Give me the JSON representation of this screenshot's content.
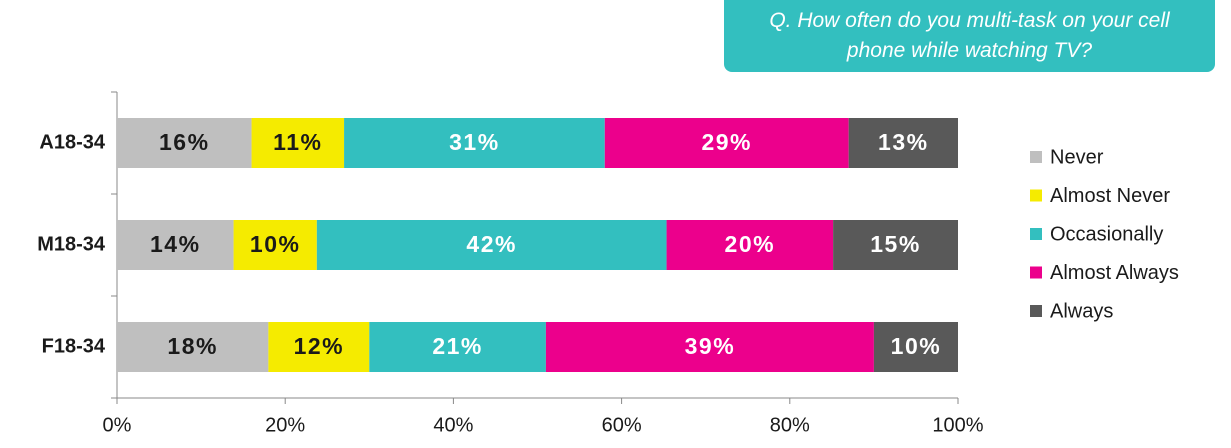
{
  "chart_data": {
    "type": "bar",
    "orientation": "horizontal",
    "stacked": "percent",
    "title": "Q. How often do you multi-task on your cell phone while watching TV?",
    "categories": [
      "A18-34",
      "M18-34",
      "F18-34"
    ],
    "series": [
      {
        "name": "Never",
        "color": "#bfbfbf",
        "label_color": "#1a1a1a",
        "values": [
          16,
          14,
          18
        ],
        "value_labels": [
          "16%",
          "14%",
          "18%"
        ]
      },
      {
        "name": "Almost Never",
        "color": "#f5eb00",
        "label_color": "#1a1a1a",
        "values": [
          11,
          10,
          12
        ],
        "value_labels": [
          "11%",
          "10%",
          "12%"
        ]
      },
      {
        "name": "Occasionally",
        "color": "#33bfbf",
        "label_color": "#ffffff",
        "values": [
          31,
          42,
          21
        ],
        "value_labels": [
          "31%",
          "42%",
          "21%"
        ]
      },
      {
        "name": "Almost Always",
        "color": "#ec008c",
        "label_color": "#ffffff",
        "values": [
          29,
          20,
          39
        ],
        "value_labels": [
          "29%",
          "20%",
          "39%"
        ]
      },
      {
        "name": "Always",
        "color": "#595959",
        "label_color": "#ffffff",
        "values": [
          13,
          15,
          10
        ],
        "value_labels": [
          "13%",
          "15%",
          "10%"
        ]
      }
    ],
    "xlim": [
      0,
      100
    ],
    "xticks": [
      {
        "value": 0,
        "label": "0%"
      },
      {
        "value": 20,
        "label": "20%"
      },
      {
        "value": 40,
        "label": "40%"
      },
      {
        "value": 60,
        "label": "60%"
      },
      {
        "value": 80,
        "label": "80%"
      },
      {
        "value": 100,
        "label": "100%"
      }
    ],
    "grid": false,
    "legend": "right"
  }
}
